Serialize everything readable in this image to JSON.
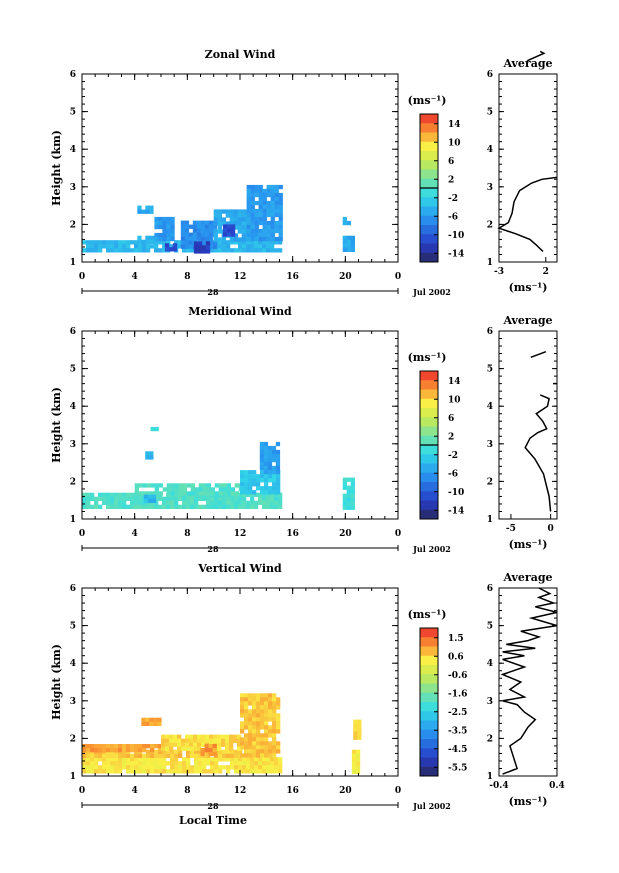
{
  "chart_data": [
    {
      "type": "heatmap",
      "title": "Zonal Wind",
      "ylabel": "Height (km)",
      "xticks": [
        "0",
        "4",
        "8",
        "12",
        "16",
        "20",
        "0"
      ],
      "yticks": [
        "1",
        "2",
        "3",
        "4",
        "5",
        "6"
      ],
      "date_label": "28",
      "date_suffix": "Jul 2002",
      "xlim": [
        0,
        24
      ],
      "ylim": [
        1,
        6
      ],
      "colorbar": {
        "unit": "(ms⁻¹)",
        "ticks": [
          "14",
          "10",
          "6",
          "2",
          "-2",
          "-6",
          "-10",
          "-14"
        ],
        "range": [
          -16,
          16
        ],
        "contour": 0
      },
      "regions": [
        {
          "x": [
            0,
            15
          ],
          "y": [
            1.28,
            1.58
          ],
          "v": -4
        },
        {
          "x": [
            4.2,
            5.6
          ],
          "y": [
            1.58,
            1.7
          ],
          "v": -4
        },
        {
          "x": [
            4.2,
            5.2
          ],
          "y": [
            2.3,
            2.5
          ],
          "v": -5
        },
        {
          "x": [
            5.5,
            7
          ],
          "y": [
            1.6,
            2.2
          ],
          "v": -6
        },
        {
          "x": [
            6.3,
            7.2
          ],
          "y": [
            1.3,
            1.5
          ],
          "v": -11
        },
        {
          "x": [
            7.5,
            10
          ],
          "y": [
            1.45,
            2.1
          ],
          "v": -7
        },
        {
          "x": [
            8.5,
            9.5
          ],
          "y": [
            1.3,
            1.55
          ],
          "v": -12
        },
        {
          "x": [
            10,
            12.5
          ],
          "y": [
            1.58,
            2.4
          ],
          "v": -5
        },
        {
          "x": [
            12.5,
            15
          ],
          "y": [
            1.58,
            3.05
          ],
          "v": -6
        },
        {
          "x": [
            10.7,
            11.5
          ],
          "y": [
            1.7,
            2
          ],
          "v": -11
        },
        {
          "x": [
            19.8,
            20.7
          ],
          "y": [
            1.3,
            1.7
          ],
          "v": -5
        },
        {
          "x": [
            19.8,
            20.3
          ],
          "y": [
            2.0,
            2.2
          ],
          "v": -4
        }
      ],
      "average": {
        "title": "Average",
        "xlabel": "(ms⁻¹)",
        "xticks": [
          "-3",
          "2"
        ],
        "xtick_values": [
          -3,
          2
        ],
        "xlim": [
          -3,
          3.2
        ],
        "yticks": [
          "1",
          "2",
          "3",
          "4",
          "5",
          "6"
        ],
        "segments": [
          [
            [
              1.7,
              1.28
            ],
            [
              1.0,
              1.45
            ],
            [
              0.3,
              1.6
            ],
            [
              -1.2,
              1.75
            ],
            [
              -3,
              1.9
            ],
            [
              -2.0,
              2.05
            ],
            [
              -1.6,
              2.3
            ],
            [
              -1.4,
              2.6
            ],
            [
              -0.8,
              2.9
            ],
            [
              0.5,
              3.1
            ],
            [
              1.6,
              3.2
            ],
            [
              3.2,
              3.25
            ]
          ],
          [
            [
              0.0,
              6.35
            ],
            [
              1.8,
              6.55
            ],
            [
              1.4,
              6.6
            ]
          ]
        ]
      }
    },
    {
      "type": "heatmap",
      "title": "Meridional Wind",
      "ylabel": "Height (km)",
      "xticks": [
        "0",
        "4",
        "8",
        "12",
        "16",
        "20",
        "0"
      ],
      "yticks": [
        "1",
        "2",
        "3",
        "4",
        "5",
        "6"
      ],
      "date_label": "28",
      "date_suffix": "Jul 2002",
      "xlim": [
        0,
        24
      ],
      "ylim": [
        1,
        6
      ],
      "colorbar": {
        "unit": "(ms⁻¹)",
        "ticks": [
          "14",
          "10",
          "6",
          "2",
          "-2",
          "-6",
          "-10",
          "-14"
        ],
        "range": [
          -16,
          16
        ],
        "contour": 0
      },
      "regions": [
        {
          "x": [
            0,
            15
          ],
          "y": [
            1.28,
            1.7
          ],
          "v": 0
        },
        {
          "x": [
            4,
            12
          ],
          "y": [
            1.7,
            1.95
          ],
          "v": 0
        },
        {
          "x": [
            12,
            15
          ],
          "y": [
            1.7,
            2.3
          ],
          "v": -3
        },
        {
          "x": [
            13.5,
            15
          ],
          "y": [
            2.3,
            3.05
          ],
          "v": -6
        },
        {
          "x": [
            4.7,
            5.5
          ],
          "y": [
            1.5,
            1.65
          ],
          "v": -4
        },
        {
          "x": [
            4.8,
            5.3
          ],
          "y": [
            2.6,
            2.8
          ],
          "v": -4
        },
        {
          "x": [
            5.2,
            5.6
          ],
          "y": [
            3.35,
            3.45
          ],
          "v": -1
        },
        {
          "x": [
            19.8,
            20.6
          ],
          "y": [
            1.3,
            2.1
          ],
          "v": -1
        }
      ],
      "average": {
        "title": "Average",
        "xlabel": "(ms⁻¹)",
        "xticks": [
          "-5",
          "0"
        ],
        "xtick_values": [
          -5,
          0
        ],
        "xlim": [
          -6.5,
          0.8
        ],
        "yticks": [
          "1",
          "2",
          "3",
          "4",
          "5",
          "6"
        ],
        "segments": [
          [
            [
              0,
              1.2
            ],
            [
              -0.2,
              1.6
            ],
            [
              -0.9,
              2.2
            ],
            [
              -2.0,
              2.6
            ],
            [
              -3.2,
              2.9
            ],
            [
              -2.6,
              3.15
            ],
            [
              -1.6,
              3.3
            ],
            [
              -0.5,
              3.4
            ],
            [
              -1.0,
              3.6
            ],
            [
              -1.8,
              3.8
            ],
            [
              -0.4,
              4.0
            ],
            [
              -0.2,
              4.2
            ],
            [
              -1.3,
              4.3
            ]
          ],
          [
            [
              -2.5,
              5.3
            ],
            [
              -0.6,
              5.45
            ]
          ],
          [
            [
              0.8,
              4.6
            ],
            [
              0.3,
              4.6
            ]
          ]
        ]
      }
    },
    {
      "type": "heatmap",
      "title": "Vertical Wind",
      "ylabel": "Height (km)",
      "xlabel": "Local Time",
      "xticks": [
        "0",
        "4",
        "8",
        "12",
        "16",
        "20",
        "0"
      ],
      "yticks": [
        "1",
        "2",
        "3",
        "4",
        "5",
        "6"
      ],
      "date_label": "28",
      "date_suffix": "Jul 2002",
      "xlim": [
        0,
        24
      ],
      "ylim": [
        1,
        6
      ],
      "colorbar": {
        "unit": "(ms⁻¹)",
        "ticks": [
          "1.5",
          "0.6",
          "-0.6",
          "-1.6",
          "-2.5",
          "-3.5",
          "-4.5",
          "-5.5"
        ],
        "range": [
          -6,
          2
        ],
        "contour": null
      },
      "regions": [
        {
          "x": [
            0,
            15
          ],
          "y": [
            1.1,
            1.5
          ],
          "v": 0.3
        },
        {
          "x": [
            0,
            12
          ],
          "y": [
            1.5,
            1.7
          ],
          "v": 0.6
        },
        {
          "x": [
            0,
            6
          ],
          "y": [
            1.7,
            1.85
          ],
          "v": 0.95
        },
        {
          "x": [
            6,
            12
          ],
          "y": [
            1.7,
            2.1
          ],
          "v": 0.4
        },
        {
          "x": [
            12,
            15
          ],
          "y": [
            1.5,
            3.2
          ],
          "v": 0.6
        },
        {
          "x": [
            4.5,
            5.8
          ],
          "y": [
            2.35,
            2.55
          ],
          "v": 0.85
        },
        {
          "x": [
            9,
            10
          ],
          "y": [
            1.6,
            1.85
          ],
          "v": 1.0
        },
        {
          "x": [
            20.5,
            21
          ],
          "y": [
            1.1,
            1.7
          ],
          "v": 0.25
        },
        {
          "x": [
            20.6,
            21.1
          ],
          "y": [
            2.0,
            2.5
          ],
          "v": 0.35
        }
      ],
      "average": {
        "title": "Average",
        "xlabel": "(ms⁻¹)",
        "xticks": [
          "-0.4",
          "0.4"
        ],
        "xtick_values": [
          -0.4,
          0.4
        ],
        "xlim": [
          -0.4,
          0.4
        ],
        "yticks": [
          "1",
          "2",
          "3",
          "4",
          "5",
          "6"
        ],
        "segments": [
          [
            [
              -0.35,
              1.05
            ],
            [
              -0.15,
              1.2
            ],
            [
              -0.2,
              1.5
            ],
            [
              -0.25,
              1.8
            ],
            [
              -0.1,
              2.0
            ],
            [
              0.0,
              2.3
            ],
            [
              0.1,
              2.5
            ],
            [
              -0.05,
              2.7
            ],
            [
              -0.15,
              2.9
            ],
            [
              -0.35,
              3.0
            ],
            [
              -0.05,
              3.1
            ],
            [
              -0.25,
              3.3
            ],
            [
              -0.1,
              3.5
            ],
            [
              -0.35,
              3.7
            ],
            [
              -0.05,
              3.9
            ],
            [
              -0.35,
              4.1
            ],
            [
              -0.05,
              4.2
            ],
            [
              -0.35,
              4.3
            ],
            [
              0.1,
              4.4
            ],
            [
              -0.3,
              4.5
            ],
            [
              0.0,
              4.6
            ],
            [
              0.15,
              4.7
            ],
            [
              -0.1,
              4.85
            ],
            [
              0.4,
              5.0
            ],
            [
              0.05,
              5.2
            ],
            [
              0.4,
              5.35
            ],
            [
              0.1,
              5.5
            ],
            [
              0.35,
              5.6
            ],
            [
              0.15,
              5.75
            ],
            [
              0.3,
              5.85
            ],
            [
              0.15,
              6.0
            ]
          ]
        ]
      }
    }
  ]
}
